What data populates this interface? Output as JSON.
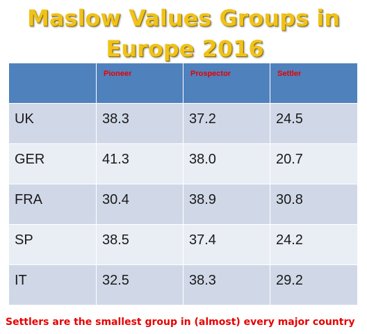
{
  "chart_data": {
    "type": "table",
    "title_line1": "Maslow Values Groups in",
    "title_line2": "Europe 2016",
    "columns": [
      "",
      "Pioneer",
      "Prospector",
      "Settler"
    ],
    "rows": [
      {
        "label": "UK",
        "values": [
          "38.3",
          "37.2",
          "24.5"
        ]
      },
      {
        "label": "GER",
        "values": [
          "41.3",
          "38.0",
          "20.7"
        ]
      },
      {
        "label": "FRA",
        "values": [
          "30.4",
          "38.9",
          "30.8"
        ]
      },
      {
        "label": "SP",
        "values": [
          "38.5",
          "37.4",
          "24.2"
        ]
      },
      {
        "label": "IT",
        "values": [
          "32.5",
          "38.3",
          "29.2"
        ]
      }
    ],
    "footnote": "Settlers are the smallest group in (almost) every major country"
  },
  "colors": {
    "title": "#f0c21a",
    "header_bg": "#4f81bd",
    "header_text": "#e60000",
    "row_odd_bg": "#d0d8e8",
    "row_even_bg": "#e9edf4",
    "footnote_text": "#e60000"
  }
}
